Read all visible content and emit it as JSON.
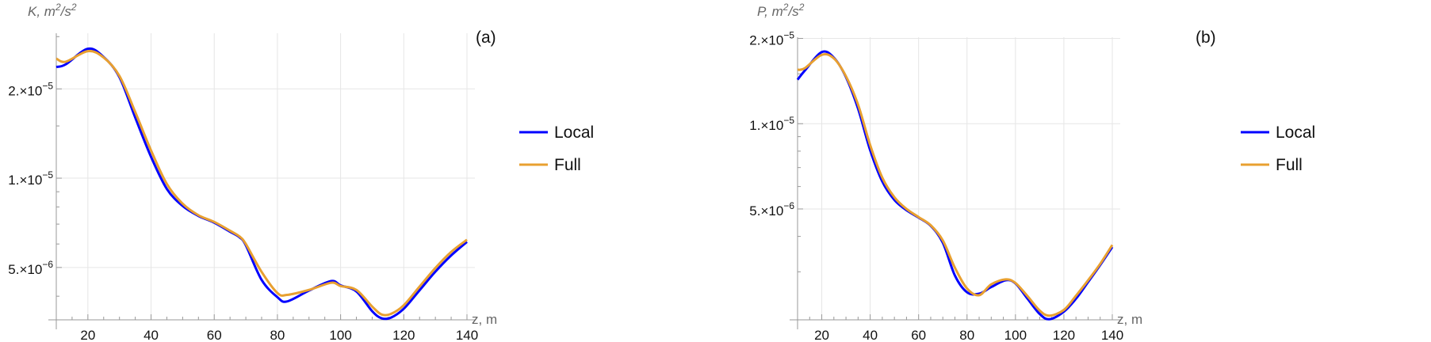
{
  "colors": {
    "local": "#0000ff",
    "full": "#e8a030",
    "grid": "#e6e6e6",
    "axis": "#999999"
  },
  "chart_data": [
    {
      "type": "line",
      "panel_label": "(a)",
      "ylabel": "K,  m²/s²",
      "ylabel_parts": {
        "var": "K,",
        "unit_m": "m",
        "exp1": "2",
        "slash": "/s",
        "exp2": "2"
      },
      "xlabel": "z, m",
      "yscale": "log",
      "xlim": [
        10,
        140
      ],
      "ylim": [
        3.33e-06,
        3.08e-05
      ],
      "xticks": [
        20,
        40,
        60,
        80,
        100,
        120,
        140
      ],
      "yticks": [
        {
          "value": 2e-05,
          "mant": "2.",
          "exp": "−5"
        },
        {
          "value": 1e-05,
          "mant": "1.",
          "exp": "−5"
        },
        {
          "value": 5e-06,
          "mant": "5.",
          "exp": "−6"
        }
      ],
      "grid": true,
      "legend_position": "right",
      "x": [
        10,
        13,
        20,
        25,
        30,
        35,
        40,
        45,
        50,
        55,
        60,
        65,
        68,
        70,
        75,
        80,
        83,
        90,
        97,
        100,
        105,
        110,
        113,
        116,
        120,
        125,
        130,
        135,
        140
      ],
      "series": [
        {
          "name": "Local",
          "values": [
            2.37e-05,
            2.42e-05,
            2.73e-05,
            2.56e-05,
            2.19e-05,
            1.6e-05,
            1.18e-05,
            9.2e-06,
            8.06e-06,
            7.46e-06,
            7.08e-06,
            6.6e-06,
            6.32e-06,
            5.94e-06,
            4.54e-06,
            3.97e-06,
            3.84e-06,
            4.18e-06,
            4.5e-06,
            4.35e-06,
            4.15e-06,
            3.56e-06,
            3.37e-06,
            3.39e-06,
            3.63e-06,
            4.19e-06,
            4.84e-06,
            5.49e-06,
            6.1e-06
          ]
        },
        {
          "name": "Full",
          "values": [
            2.53e-05,
            2.47e-05,
            2.68e-05,
            2.55e-05,
            2.21e-05,
            1.67e-05,
            1.24e-05,
            9.56e-06,
            8.2e-06,
            7.5e-06,
            7.12e-06,
            6.65e-06,
            6.36e-06,
            6e-06,
            4.83e-06,
            4.1e-06,
            4.04e-06,
            4.2e-06,
            4.44e-06,
            4.33e-06,
            4.2e-06,
            3.69e-06,
            3.47e-06,
            3.49e-06,
            3.73e-06,
            4.31e-06,
            4.98e-06,
            5.64e-06,
            6.2e-06
          ]
        }
      ]
    },
    {
      "type": "line",
      "panel_label": "(b)",
      "ylabel": "P,  m²/s²",
      "ylabel_parts": {
        "var": "P,",
        "unit_m": "m",
        "exp1": "2",
        "slash": "/s",
        "exp2": "2"
      },
      "xlabel": "z, m",
      "yscale": "log",
      "xlim": [
        10,
        140
      ],
      "ylim": [
        2.03e-06,
        2.02e-05
      ],
      "xticks": [
        20,
        40,
        60,
        80,
        100,
        120,
        140
      ],
      "yticks": [
        {
          "value": 2e-05,
          "mant": "2.",
          "exp": "−5"
        },
        {
          "value": 1e-05,
          "mant": "1.",
          "exp": "−5"
        },
        {
          "value": 5e-06,
          "mant": "5.",
          "exp": "−6"
        }
      ],
      "grid": true,
      "legend_position": "right",
      "x": [
        10,
        13,
        20,
        25,
        30,
        35,
        40,
        45,
        50,
        55,
        60,
        65,
        70,
        75,
        80,
        85,
        90,
        96,
        100,
        105,
        110,
        114,
        120,
        125,
        130,
        135,
        140
      ],
      "series": [
        {
          "name": "Local",
          "values": [
            1.43e-05,
            1.54e-05,
            1.79e-05,
            1.71e-05,
            1.46e-05,
            1.13e-05,
            8.06e-06,
            6.25e-06,
            5.38e-06,
            4.95e-06,
            4.66e-06,
            4.36e-06,
            3.8e-06,
            2.91e-06,
            2.54e-06,
            2.51e-06,
            2.65e-06,
            2.8e-06,
            2.73e-06,
            2.41e-06,
            2.13e-06,
            2.04e-06,
            2.17e-06,
            2.41e-06,
            2.76e-06,
            3.17e-06,
            3.67e-06
          ]
        },
        {
          "name": "Full",
          "values": [
            1.55e-05,
            1.57e-05,
            1.75e-05,
            1.7e-05,
            1.47e-05,
            1.167e-05,
            8.4e-06,
            6.45e-06,
            5.5e-06,
            5e-06,
            4.68e-06,
            4.38e-06,
            3.87e-06,
            3.1e-06,
            2.62e-06,
            2.48e-06,
            2.71e-06,
            2.82e-06,
            2.74e-06,
            2.46e-06,
            2.19e-06,
            2.1e-06,
            2.2e-06,
            2.47e-06,
            2.8e-06,
            3.2e-06,
            3.73e-06
          ]
        }
      ]
    }
  ]
}
